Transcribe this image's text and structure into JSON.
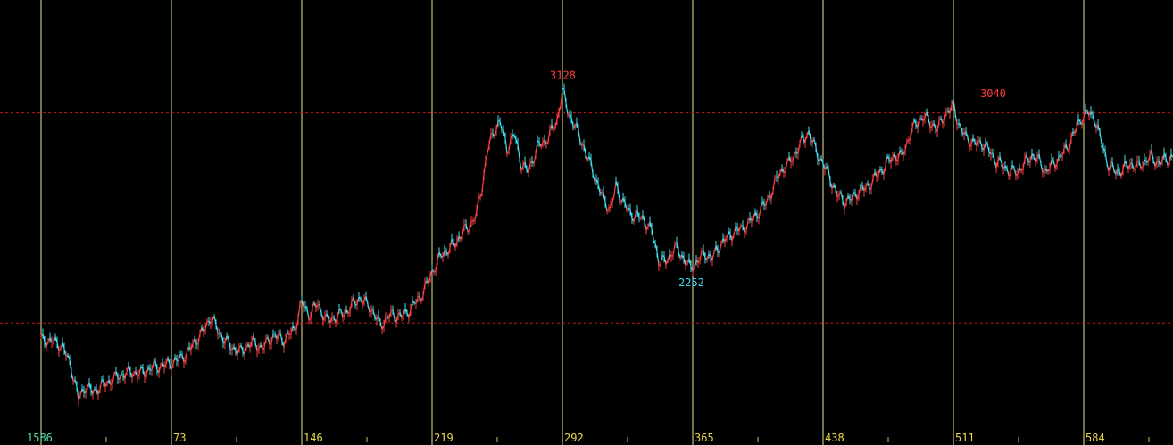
{
  "chart_data": {
    "type": "line",
    "title": "",
    "xlabel": "",
    "ylabel": "",
    "x_ticks": [
      "1586",
      "73",
      "146",
      "219",
      "292",
      "365",
      "438",
      "511",
      "584"
    ],
    "xlim": [
      0,
      640
    ],
    "ylim": [
      1500,
      3300
    ],
    "reference_lines": [
      3000,
      2000
    ],
    "annotations": [
      {
        "label": "3128",
        "x": 292,
        "value": 3128,
        "kind": "high",
        "color": "#ff3b3b"
      },
      {
        "label": "3040",
        "x": 533,
        "value": 3040,
        "kind": "high",
        "color": "#ff3b3b"
      },
      {
        "label": "2252",
        "x": 364,
        "value": 2252,
        "kind": "low",
        "color": "#38d8e8"
      }
    ],
    "series": [
      {
        "up_color": "#ff4040",
        "down_color": "#40e0f0",
        "points": [
          [
            0,
            1920
          ],
          [
            6,
            1915
          ],
          [
            12,
            1890
          ],
          [
            17,
            1790
          ],
          [
            21,
            1640
          ],
          [
            25,
            1700
          ],
          [
            29,
            1670
          ],
          [
            33,
            1695
          ],
          [
            38,
            1720
          ],
          [
            44,
            1750
          ],
          [
            50,
            1765
          ],
          [
            56,
            1760
          ],
          [
            63,
            1790
          ],
          [
            70,
            1800
          ],
          [
            76,
            1820
          ],
          [
            82,
            1855
          ],
          [
            86,
            1910
          ],
          [
            91,
            1960
          ],
          [
            95,
            2030
          ],
          [
            100,
            1950
          ],
          [
            106,
            1890
          ],
          [
            112,
            1860
          ],
          [
            118,
            1910
          ],
          [
            124,
            1880
          ],
          [
            130,
            1940
          ],
          [
            136,
            1920
          ],
          [
            142,
            1970
          ],
          [
            146,
            2100
          ],
          [
            150,
            2040
          ],
          [
            155,
            2090
          ],
          [
            160,
            2010
          ],
          [
            166,
            2030
          ],
          [
            172,
            2060
          ],
          [
            178,
            2120
          ],
          [
            184,
            2080
          ],
          [
            190,
            1990
          ],
          [
            196,
            2040
          ],
          [
            202,
            2030
          ],
          [
            206,
            2060
          ],
          [
            212,
            2120
          ],
          [
            216,
            2180
          ],
          [
            220,
            2260
          ],
          [
            224,
            2320
          ],
          [
            228,
            2350
          ],
          [
            232,
            2380
          ],
          [
            236,
            2430
          ],
          [
            240,
            2460
          ],
          [
            244,
            2520
          ],
          [
            247,
            2650
          ],
          [
            250,
            2820
          ],
          [
            254,
            2920
          ],
          [
            257,
            2960
          ],
          [
            261,
            2830
          ],
          [
            265,
            2900
          ],
          [
            269,
            2760
          ],
          [
            273,
            2720
          ],
          [
            278,
            2840
          ],
          [
            282,
            2860
          ],
          [
            285,
            2900
          ],
          [
            289,
            2960
          ],
          [
            292,
            3110
          ],
          [
            295,
            3010
          ],
          [
            299,
            2940
          ],
          [
            303,
            2860
          ],
          [
            307,
            2770
          ],
          [
            311,
            2680
          ],
          [
            315,
            2590
          ],
          [
            319,
            2540
          ],
          [
            322,
            2650
          ],
          [
            326,
            2580
          ],
          [
            330,
            2520
          ],
          [
            334,
            2510
          ],
          [
            338,
            2490
          ],
          [
            342,
            2440
          ],
          [
            346,
            2300
          ],
          [
            350,
            2290
          ],
          [
            355,
            2360
          ],
          [
            360,
            2310
          ],
          [
            364,
            2260
          ],
          [
            368,
            2300
          ],
          [
            372,
            2330
          ],
          [
            376,
            2310
          ],
          [
            381,
            2380
          ],
          [
            385,
            2410
          ],
          [
            389,
            2440
          ],
          [
            393,
            2450
          ],
          [
            397,
            2480
          ],
          [
            402,
            2530
          ],
          [
            406,
            2570
          ],
          [
            410,
            2640
          ],
          [
            414,
            2720
          ],
          [
            418,
            2750
          ],
          [
            422,
            2800
          ],
          [
            426,
            2860
          ],
          [
            430,
            2910
          ],
          [
            434,
            2820
          ],
          [
            438,
            2760
          ],
          [
            442,
            2690
          ],
          [
            446,
            2610
          ],
          [
            450,
            2580
          ],
          [
            454,
            2590
          ],
          [
            458,
            2630
          ],
          [
            462,
            2640
          ],
          [
            466,
            2680
          ],
          [
            470,
            2720
          ],
          [
            474,
            2760
          ],
          [
            478,
            2800
          ],
          [
            482,
            2790
          ],
          [
            486,
            2880
          ],
          [
            490,
            2950
          ],
          [
            494,
            2980
          ],
          [
            498,
            2960
          ],
          [
            502,
            2920
          ],
          [
            506,
            2990
          ],
          [
            509,
            3010
          ],
          [
            511,
            3040
          ],
          [
            515,
            2920
          ],
          [
            519,
            2880
          ],
          [
            523,
            2850
          ],
          [
            527,
            2860
          ],
          [
            531,
            2820
          ],
          [
            535,
            2770
          ],
          [
            539,
            2750
          ],
          [
            543,
            2720
          ],
          [
            547,
            2720
          ],
          [
            551,
            2760
          ],
          [
            555,
            2800
          ],
          [
            559,
            2770
          ],
          [
            563,
            2720
          ],
          [
            567,
            2760
          ],
          [
            571,
            2790
          ],
          [
            575,
            2840
          ],
          [
            579,
            2910
          ],
          [
            583,
            2980
          ],
          [
            586,
            3000
          ],
          [
            590,
            2980
          ],
          [
            594,
            2860
          ],
          [
            598,
            2750
          ],
          [
            602,
            2720
          ],
          [
            606,
            2730
          ],
          [
            610,
            2760
          ],
          [
            614,
            2740
          ],
          [
            618,
            2770
          ],
          [
            622,
            2790
          ],
          [
            626,
            2760
          ],
          [
            630,
            2780
          ],
          [
            634,
            2790
          ]
        ]
      }
    ]
  }
}
